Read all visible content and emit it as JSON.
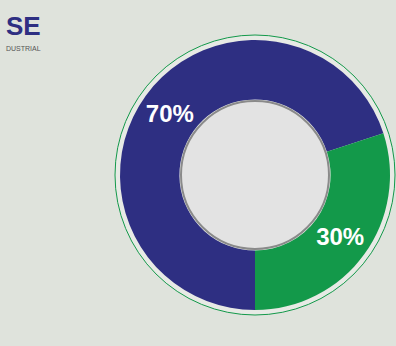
{
  "chart_data": {
    "type": "pie",
    "values": [
      70,
      30
    ],
    "value_labels": [
      "70%",
      "30%"
    ],
    "colors": [
      "#2e2f82",
      "#13994a"
    ],
    "data_labels": true,
    "annotations": [
      "SE",
      "DUSTRIAL"
    ]
  }
}
